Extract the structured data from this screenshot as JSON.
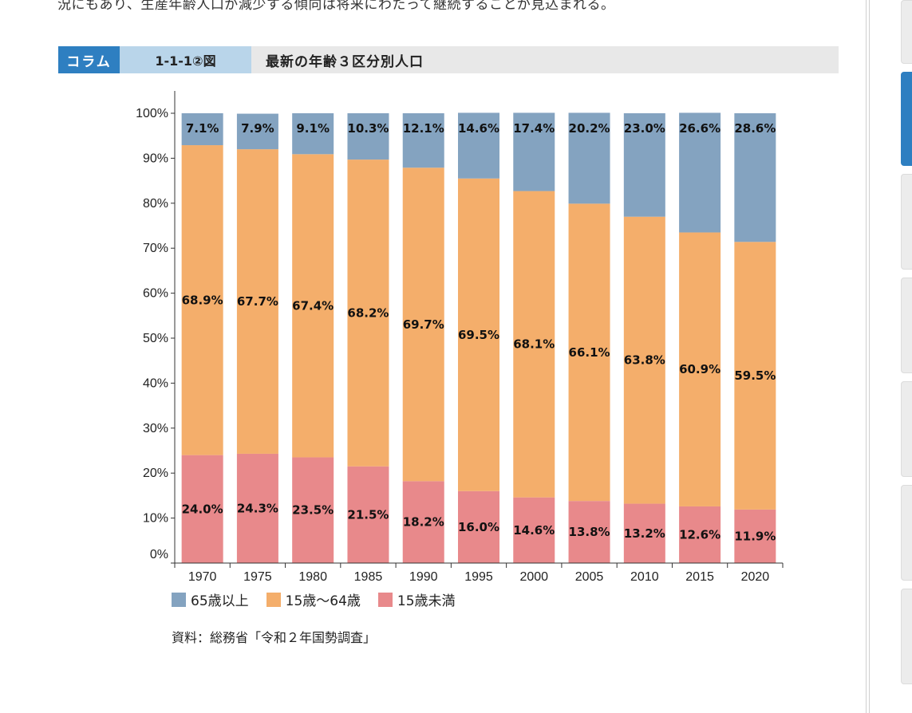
{
  "intro": {
    "text": "況にもあり、生産年齢人口が減少する傾向は将来にわたって継続することが見込まれる。"
  },
  "header": {
    "column_label": "コラム",
    "figure_number": "1-1-1②図",
    "title": "最新の年齢３区分別人口"
  },
  "chart_data": {
    "type": "bar",
    "stacked": true,
    "categories": [
      "1970",
      "1975",
      "1980",
      "1985",
      "1990",
      "1995",
      "2000",
      "2005",
      "2010",
      "2015",
      "2020"
    ],
    "series": [
      {
        "name": "15歳未満",
        "color": "#e8898b",
        "values": [
          24.0,
          24.3,
          23.5,
          21.5,
          18.2,
          16.0,
          14.6,
          13.8,
          13.2,
          12.6,
          11.9
        ]
      },
      {
        "name": "15歳～64歳",
        "color": "#f4ae6b",
        "values": [
          68.9,
          67.7,
          67.4,
          68.2,
          69.7,
          69.5,
          68.1,
          66.1,
          63.8,
          60.9,
          59.5
        ]
      },
      {
        "name": "65歳以上",
        "color": "#84a3c0",
        "values": [
          7.1,
          7.9,
          9.1,
          10.3,
          12.1,
          14.6,
          17.4,
          20.2,
          23.0,
          26.6,
          28.6
        ]
      }
    ],
    "ylim": [
      0,
      100
    ],
    "yticks": [
      "0%",
      "10%",
      "20%",
      "30%",
      "40%",
      "50%",
      "60%",
      "70%",
      "80%",
      "90%",
      "100%"
    ],
    "title": "",
    "xlabel": "",
    "ylabel": ""
  },
  "legend": [
    {
      "label": "65歳以上",
      "color": "#84a3c0"
    },
    {
      "label": "15歳～64歳",
      "color": "#f4ae6b"
    },
    {
      "label": "15歳未満",
      "color": "#e8898b"
    }
  ],
  "source": "資料：総務省「令和２年国勢調査」"
}
